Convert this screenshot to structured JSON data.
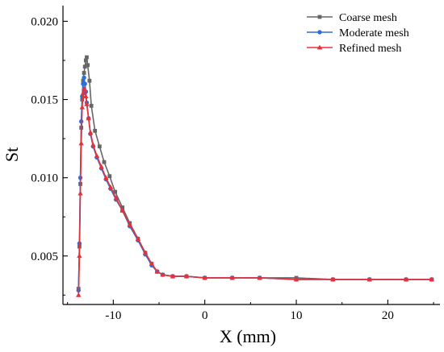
{
  "chart_data": {
    "type": "line",
    "xlabel": "X (mm)",
    "ylabel": "St",
    "xlim": [
      -15.5,
      25.7
    ],
    "ylim": [
      0.0019,
      0.021
    ],
    "xticks": [
      -10,
      0,
      10,
      20
    ],
    "xtick_labels": [
      "-10",
      "0",
      "10",
      "20"
    ],
    "yticks": [
      0.005,
      0.01,
      0.015,
      0.02
    ],
    "ytick_labels": [
      "0.005",
      "0.010",
      "0.015",
      "0.020"
    ],
    "grid": false,
    "legend_position": "top-right",
    "series": [
      {
        "name": "Coarse mesh",
        "color": "#666666",
        "marker": "square",
        "x": [
          -13.8,
          -13.7,
          -13.6,
          -13.5,
          -13.4,
          -13.3,
          -13.2,
          -13.1,
          -13.0,
          -12.9,
          -12.8,
          -12.6,
          -12.4,
          -12.0,
          -11.5,
          -11.0,
          -10.4,
          -9.8,
          -9.0,
          -8.2,
          -7.3,
          -6.5,
          -5.8,
          -5.2,
          -4.6,
          -3.5,
          -2.0,
          0.0,
          3.0,
          6.0,
          10.0,
          14.0,
          18.0,
          22.0,
          24.8
        ],
        "y": [
          0.0029,
          0.0056,
          0.0096,
          0.0132,
          0.015,
          0.0162,
          0.0167,
          0.0171,
          0.0175,
          0.0177,
          0.0172,
          0.0162,
          0.0146,
          0.013,
          0.012,
          0.011,
          0.0101,
          0.0091,
          0.0081,
          0.0071,
          0.0061,
          0.0052,
          0.0045,
          0.004,
          0.0038,
          0.0037,
          0.0037,
          0.0036,
          0.0036,
          0.0036,
          0.0036,
          0.0035,
          0.0035,
          0.0035,
          0.0035
        ]
      },
      {
        "name": "Moderate mesh",
        "color": "#2a6fdb",
        "marker": "circle",
        "x": [
          -13.8,
          -13.7,
          -13.6,
          -13.5,
          -13.4,
          -13.3,
          -13.2,
          -13.1,
          -13.0,
          -12.9,
          -12.7,
          -12.5,
          -12.2,
          -11.8,
          -11.3,
          -10.8,
          -10.3,
          -9.7,
          -9.0,
          -8.2,
          -7.3,
          -6.5,
          -5.8,
          -5.2,
          -4.6,
          -3.5,
          -2.0,
          0.0,
          3.0,
          6.0,
          10.0,
          14.0,
          18.0,
          22.0,
          24.8
        ],
        "y": [
          0.0028,
          0.0058,
          0.01,
          0.0136,
          0.0152,
          0.016,
          0.0164,
          0.016,
          0.0155,
          0.0148,
          0.0138,
          0.0128,
          0.012,
          0.0113,
          0.0106,
          0.0099,
          0.0093,
          0.0086,
          0.0079,
          0.0069,
          0.006,
          0.0051,
          0.0044,
          0.004,
          0.0038,
          0.0037,
          0.0037,
          0.0036,
          0.0036,
          0.0036,
          0.0035,
          0.0035,
          0.0035,
          0.0035,
          0.0035
        ]
      },
      {
        "name": "Refined mesh",
        "color": "#e8303a",
        "marker": "triangle",
        "x": [
          -13.8,
          -13.7,
          -13.6,
          -13.5,
          -13.4,
          -13.3,
          -13.2,
          -13.1,
          -13.0,
          -12.9,
          -12.7,
          -12.5,
          -12.2,
          -11.8,
          -11.3,
          -10.8,
          -10.3,
          -9.7,
          -9.0,
          -8.2,
          -7.3,
          -6.5,
          -5.8,
          -5.2,
          -4.6,
          -3.5,
          -2.0,
          0.0,
          3.0,
          6.0,
          10.0,
          14.0,
          18.0,
          22.0,
          24.8
        ],
        "y": [
          0.0025,
          0.005,
          0.009,
          0.0122,
          0.0145,
          0.0154,
          0.0157,
          0.0156,
          0.0152,
          0.0147,
          0.0138,
          0.0129,
          0.0121,
          0.0114,
          0.0107,
          0.01,
          0.0094,
          0.0087,
          0.0079,
          0.007,
          0.0061,
          0.0052,
          0.0045,
          0.004,
          0.0038,
          0.0037,
          0.0037,
          0.0036,
          0.0036,
          0.0036,
          0.0035,
          0.0035,
          0.0035,
          0.0035,
          0.0035
        ]
      }
    ]
  }
}
